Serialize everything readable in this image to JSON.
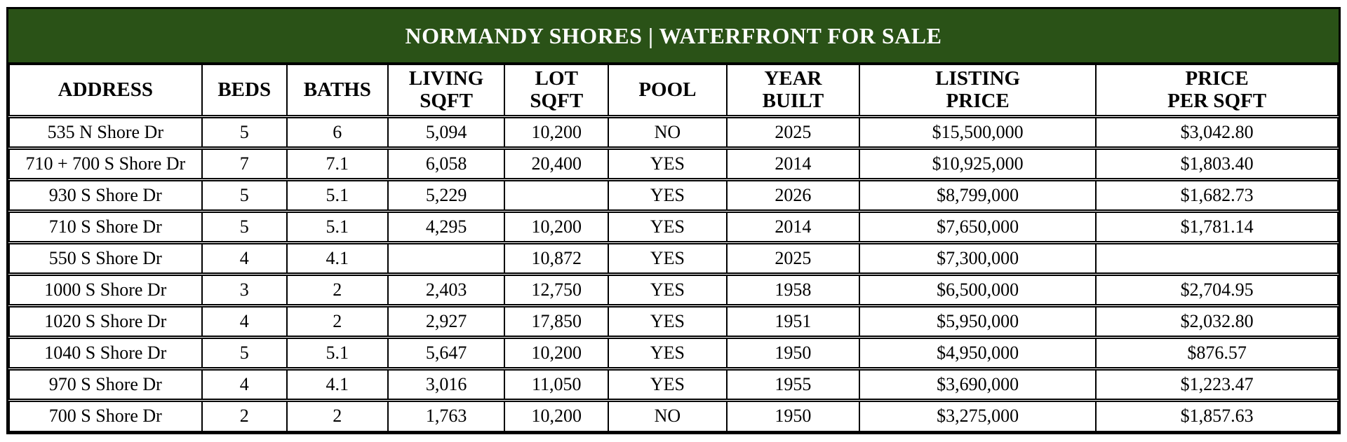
{
  "title": "NORMANDY SHORES | WATERFRONT FOR SALE",
  "colors": {
    "banner_bg": "#2A5217",
    "banner_text": "#FFFFFF",
    "border": "#000000",
    "text": "#000000",
    "row_bg": "#FFFFFF"
  },
  "table": {
    "columns": [
      {
        "key": "address",
        "label_lines": [
          "ADDRESS"
        ]
      },
      {
        "key": "beds",
        "label_lines": [
          "BEDS"
        ]
      },
      {
        "key": "baths",
        "label_lines": [
          "BATHS"
        ]
      },
      {
        "key": "living_sqft",
        "label_lines": [
          "LIVING",
          "SQFT"
        ]
      },
      {
        "key": "lot_sqft",
        "label_lines": [
          "LOT",
          "SQFT"
        ]
      },
      {
        "key": "pool",
        "label_lines": [
          "POOL"
        ]
      },
      {
        "key": "year_built",
        "label_lines": [
          "YEAR",
          "BUILT"
        ]
      },
      {
        "key": "listing_price",
        "label_lines": [
          "LISTING",
          "PRICE"
        ]
      },
      {
        "key": "price_per_sqft",
        "label_lines": [
          "PRICE",
          "PER SQFT"
        ]
      }
    ],
    "rows": [
      [
        "535 N Shore Dr",
        "5",
        "6",
        "5,094",
        "10,200",
        "NO",
        "2025",
        "$15,500,000",
        "$3,042.80"
      ],
      [
        "710 + 700 S Shore Dr",
        "7",
        "7.1",
        "6,058",
        "20,400",
        "YES",
        "2014",
        "$10,925,000",
        "$1,803.40"
      ],
      [
        "930 S Shore Dr",
        "5",
        "5.1",
        "5,229",
        "",
        "YES",
        "2026",
        "$8,799,000",
        "$1,682.73"
      ],
      [
        "710 S Shore Dr",
        "5",
        "5.1",
        "4,295",
        "10,200",
        "YES",
        "2014",
        "$7,650,000",
        "$1,781.14"
      ],
      [
        "550 S Shore Dr",
        "4",
        "4.1",
        "",
        "10,872",
        "YES",
        "2025",
        "$7,300,000",
        ""
      ],
      [
        "1000 S Shore Dr",
        "3",
        "2",
        "2,403",
        "12,750",
        "YES",
        "1958",
        "$6,500,000",
        "$2,704.95"
      ],
      [
        "1020 S Shore Dr",
        "4",
        "2",
        "2,927",
        "17,850",
        "YES",
        "1951",
        "$5,950,000",
        "$2,032.80"
      ],
      [
        "1040 S Shore Dr",
        "5",
        "5.1",
        "5,647",
        "10,200",
        "YES",
        "1950",
        "$4,950,000",
        "$876.57"
      ],
      [
        "970 S Shore Dr",
        "4",
        "4.1",
        "3,016",
        "11,050",
        "YES",
        "1955",
        "$3,690,000",
        "$1,223.47"
      ],
      [
        "700 S Shore Dr",
        "2",
        "2",
        "1,763",
        "10,200",
        "NO",
        "1950",
        "$3,275,000",
        "$1,857.63"
      ]
    ]
  }
}
